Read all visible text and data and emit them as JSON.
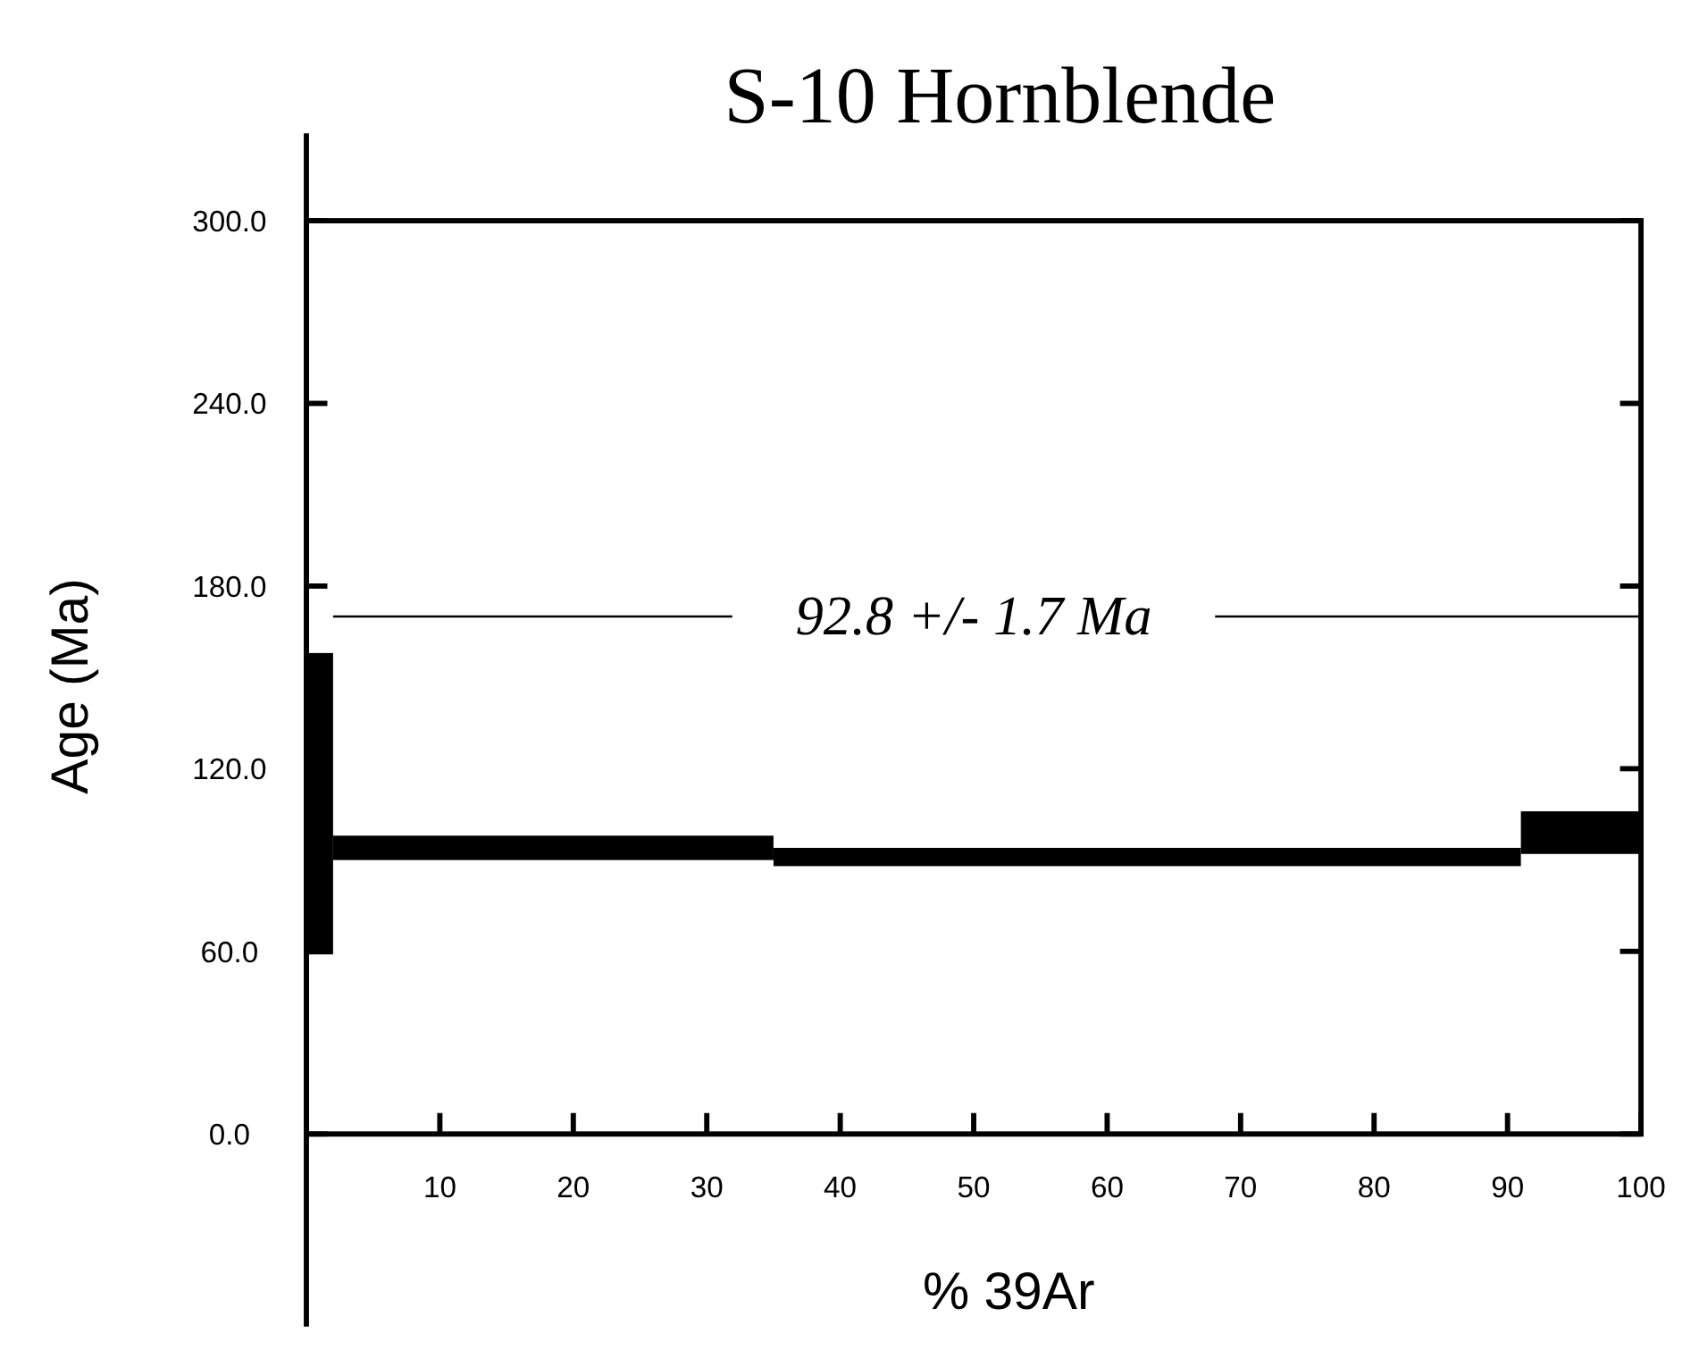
{
  "chart_data": {
    "type": "histogram",
    "title": "S-10 Hornblende",
    "xlabel": "% 39Ar",
    "ylabel": "Age (Ma)",
    "bins": [
      0,
      2,
      35,
      91,
      100
    ],
    "base": [
      59,
      90,
      88,
      92
    ],
    "values": [
      99,
      8,
      6,
      14
    ],
    "color": "#000000",
    "xlim": [
      0,
      100
    ],
    "xticks": [
      {
        "value": 0,
        "label": null
      },
      10,
      20,
      30,
      40,
      50,
      60,
      70,
      80,
      90,
      100
    ],
    "ylim": [
      0,
      300
    ],
    "yticks": [
      {
        "value": 0,
        "label": "0.0"
      },
      {
        "value": 60,
        "label": "60.0"
      },
      {
        "value": 120,
        "label": "120.0"
      },
      {
        "value": 180,
        "label": "180.0"
      },
      {
        "value": 240,
        "label": "240.0"
      },
      {
        "value": 300,
        "label": "300.0"
      }
    ],
    "ref_lines": [
      {
        "axis": "y",
        "value": 170,
        "label": "92.8 +/- 1.7 Ma",
        "color": "#000000"
      }
    ],
    "grid": false
  }
}
